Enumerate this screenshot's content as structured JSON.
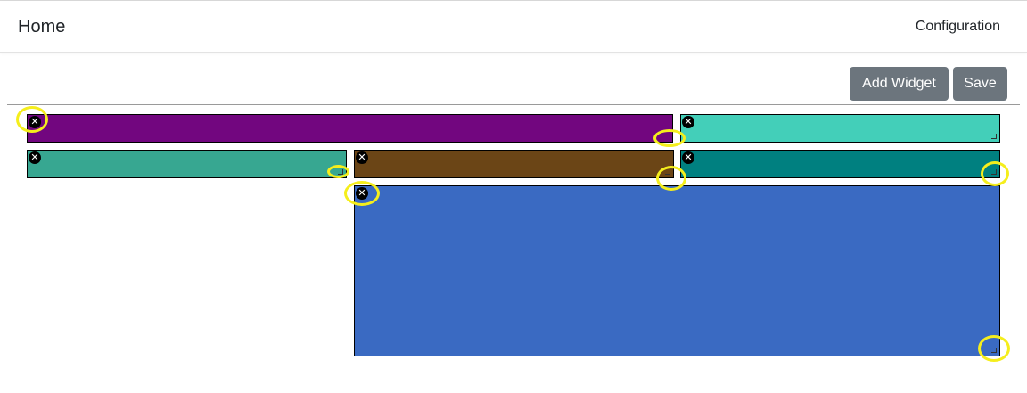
{
  "navbar": {
    "brand": "Home",
    "link": "Configuration"
  },
  "toolbar": {
    "add_widget_label": "Add Widget",
    "save_label": "Save"
  },
  "widgets": [
    {
      "id": "purple",
      "color": "#72067F",
      "close_icon": "close-icon",
      "close_symbol": "✕"
    },
    {
      "id": "aqua",
      "color": "#43CFB9",
      "close_icon": "close-icon",
      "close_symbol": "✕"
    },
    {
      "id": "seagreen",
      "color": "#37A791",
      "close_icon": "close-icon",
      "close_symbol": "✕"
    },
    {
      "id": "brown",
      "color": "#6B4516",
      "close_icon": "close-icon",
      "close_symbol": "✕"
    },
    {
      "id": "teal",
      "color": "#008080",
      "close_icon": "close-icon",
      "close_symbol": "✕"
    },
    {
      "id": "blue",
      "color": "#3A6AC2",
      "close_icon": "close-icon",
      "close_symbol": "✕"
    }
  ],
  "annotation_color": "#F5EE1C"
}
